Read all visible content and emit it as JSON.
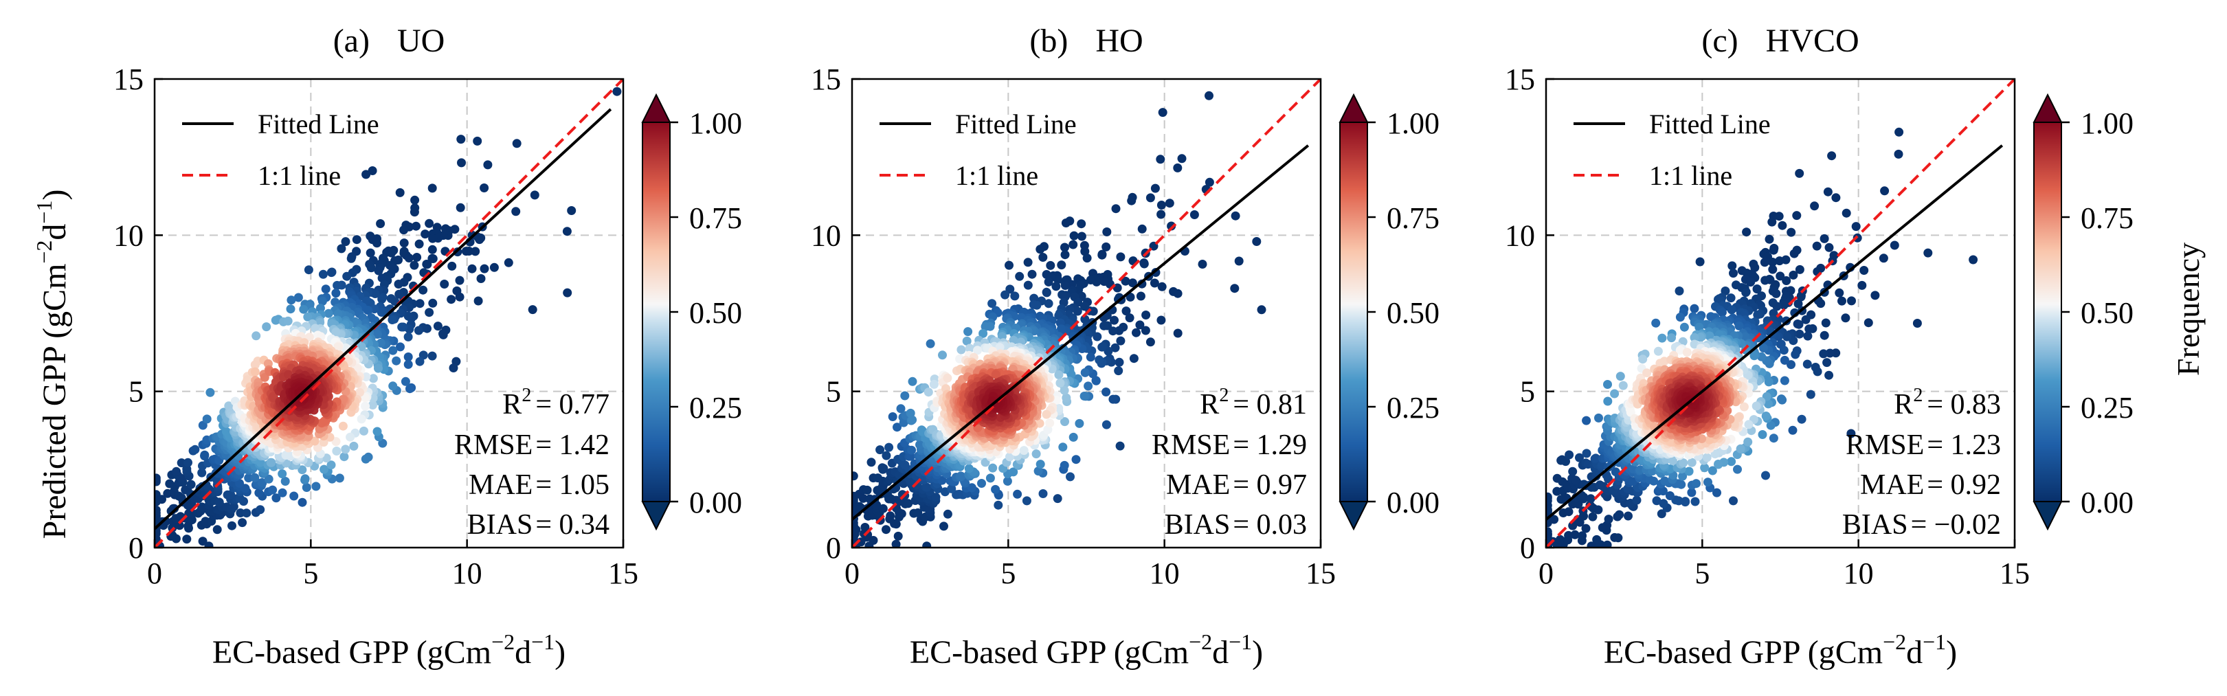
{
  "figure": {
    "shared_ylabel_main": "Predicted GPP (gCm",
    "shared_ylabel_sup1": "−2",
    "shared_ylabel_mid": "d",
    "shared_ylabel_sup2": "−1",
    "shared_ylabel_end": ")",
    "colorbar_label": "Frequency",
    "colorbar_ticks": [
      "0.00",
      "0.25",
      "0.50",
      "0.75",
      "1.00"
    ],
    "colors": {
      "scatter_low": "#08306b",
      "scatter_mid": "#f7f7f7",
      "scatter_high": "#b2182b",
      "fitted_line": "#000000",
      "one_to_one_line": "#ee1c1c",
      "grid": "#c8c8c8"
    }
  },
  "chart_data": [
    {
      "type": "scatter",
      "panel_id": "a",
      "title_prefix": "(a)",
      "title_name": "UO",
      "xlabel_main": "EC-based GPP (gCm",
      "xlabel_sup1": "−2",
      "xlabel_mid": "d",
      "xlabel_sup2": "−1",
      "xlabel_end": ")",
      "xlim": [
        0,
        15
      ],
      "ylim": [
        0,
        15
      ],
      "xticks": [
        "0",
        "5",
        "10",
        "15"
      ],
      "yticks": [
        "0",
        "5",
        "10",
        "15"
      ],
      "grid": true,
      "legend_position": "top-left",
      "legend": [
        "Fitted Line",
        "1:1 line"
      ],
      "fitted_line": {
        "slope": 0.92,
        "intercept": 0.6
      },
      "one_to_one": {
        "slope": 1,
        "intercept": 0
      },
      "stats": [
        {
          "label": "R",
          "sup": "2",
          "value": "= 0.77"
        },
        {
          "label": "RMSE",
          "sup": "",
          "value": "= 1.42"
        },
        {
          "label": "MAE",
          "sup": "",
          "value": "= 1.05"
        },
        {
          "label": "BIAS",
          "sup": "",
          "value": "= 0.34"
        }
      ],
      "density_core": {
        "x": 4.7,
        "y": 4.9,
        "spread_x": 1.6,
        "spread_y": 1.5
      },
      "point_cloud_seed": 11
    },
    {
      "type": "scatter",
      "panel_id": "b",
      "title_prefix": "(b)",
      "title_name": "HO",
      "xlabel_main": "EC-based GPP (gCm",
      "xlabel_sup1": "−2",
      "xlabel_mid": "d",
      "xlabel_sup2": "−1",
      "xlabel_end": ")",
      "xlim": [
        0,
        15
      ],
      "ylim": [
        0,
        15
      ],
      "xticks": [
        "0",
        "5",
        "10",
        "15"
      ],
      "yticks": [
        "0",
        "5",
        "10",
        "15"
      ],
      "grid": true,
      "legend_position": "top-left",
      "legend": [
        "Fitted Line",
        "1:1 line"
      ],
      "fitted_line": {
        "slope": 0.82,
        "intercept": 0.9
      },
      "one_to_one": {
        "slope": 1,
        "intercept": 0
      },
      "stats": [
        {
          "label": "R",
          "sup": "2",
          "value": "= 0.81"
        },
        {
          "label": "RMSE",
          "sup": "",
          "value": "= 1.29"
        },
        {
          "label": "MAE",
          "sup": "",
          "value": "= 0.97"
        },
        {
          "label": "BIAS",
          "sup": "",
          "value": "= 0.03"
        }
      ],
      "density_core": {
        "x": 4.6,
        "y": 4.6,
        "spread_x": 1.5,
        "spread_y": 1.3
      },
      "point_cloud_seed": 23
    },
    {
      "type": "scatter",
      "panel_id": "c",
      "title_prefix": "(c)",
      "title_name": "HVCO",
      "xlabel_main": "EC-based GPP (gCm",
      "xlabel_sup1": "−2",
      "xlabel_mid": "d",
      "xlabel_sup2": "−1",
      "xlabel_end": ")",
      "xlim": [
        0,
        15
      ],
      "ylim": [
        0,
        15
      ],
      "xticks": [
        "0",
        "5",
        "10",
        "15"
      ],
      "yticks": [
        "0",
        "5",
        "10",
        "15"
      ],
      "grid": true,
      "legend_position": "top-left",
      "legend": [
        "Fitted Line",
        "1:1 line"
      ],
      "fitted_line": {
        "slope": 0.82,
        "intercept": 0.9
      },
      "one_to_one": {
        "slope": 1,
        "intercept": 0
      },
      "stats": [
        {
          "label": "R",
          "sup": "2",
          "value": "= 0.83"
        },
        {
          "label": "RMSE",
          "sup": "",
          "value": "= 1.23"
        },
        {
          "label": "MAE",
          "sup": "",
          "value": "= 0.92"
        },
        {
          "label": "BIAS",
          "sup": "",
          "value": "= −0.02"
        }
      ],
      "density_core": {
        "x": 4.6,
        "y": 4.5,
        "spread_x": 1.5,
        "spread_y": 1.3
      },
      "point_cloud_seed": 37
    }
  ]
}
